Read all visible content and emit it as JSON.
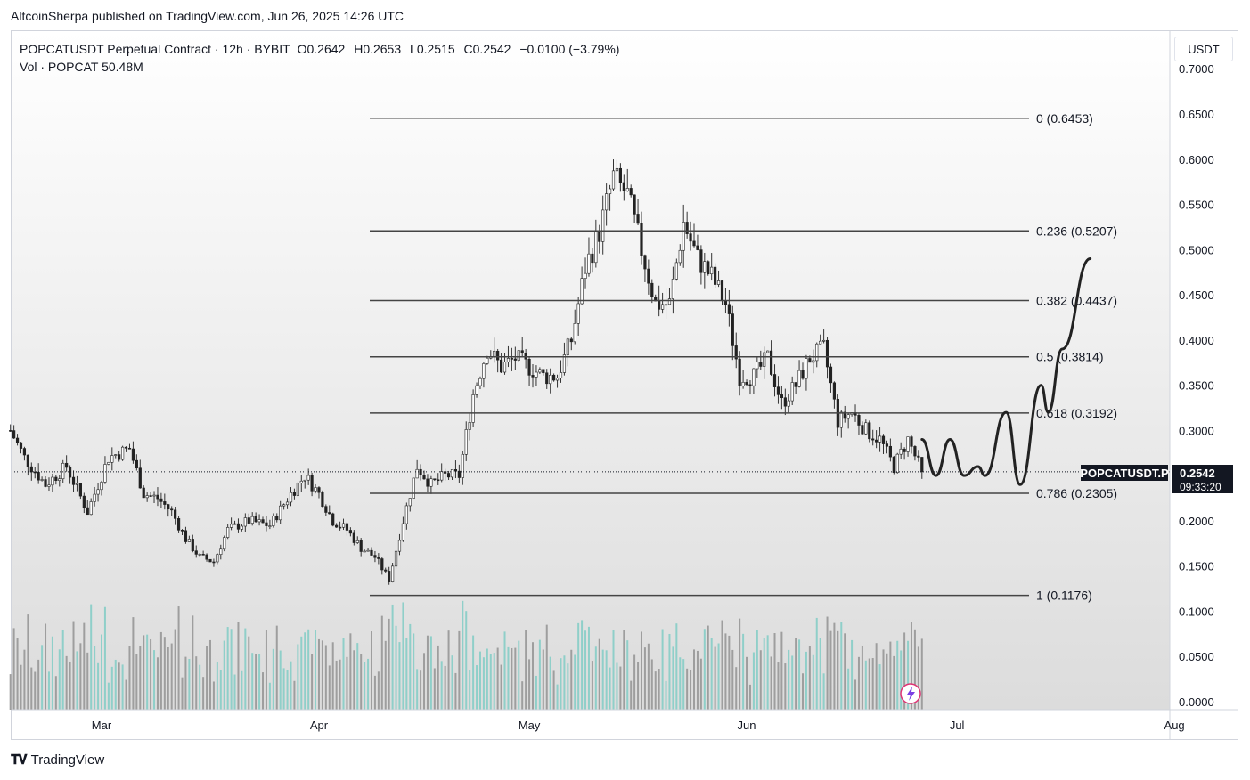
{
  "header": {
    "publisher": "AltcoinSherpa published on TradingView.com, Jun 26, 2025 14:26 UTC"
  },
  "legend": {
    "symbol": "POPCATUSDT Perpetual Contract · 12h · BYBIT",
    "open": "O0.2642",
    "high": "H0.2653",
    "low": "L0.2515",
    "close": "C0.2542",
    "change": "−0.0100 (−3.79%)",
    "volume": "Vol · POPCAT  50.48M"
  },
  "currency_button": "USDT",
  "brand": {
    "name": "TradingView",
    "logo": "tradingview-logo-icon"
  },
  "price_tag": {
    "symbol": "POPCATUSDT.P",
    "price": "0.2542",
    "countdown": "09:33:20"
  },
  "colors": {
    "up": "#26a69a",
    "down": "#555555",
    "vol_up": "#8fcfc9",
    "vol_down": "#9e9e9e",
    "fib_line": "#444444",
    "projection": "#222222",
    "tag_bg": "#131722",
    "bg_top": "#ffffff",
    "bg_bottom": "#dedede"
  },
  "chart_data": {
    "type": "candlestick",
    "interval": "12h",
    "y_axis": {
      "ticks": [
        "0.7000",
        "0.6500",
        "0.6000",
        "0.5500",
        "0.5000",
        "0.4500",
        "0.4000",
        "0.3500",
        "0.3000",
        "0.2500",
        "0.2000",
        "0.1500",
        "0.1000",
        "0.0500",
        "0.0000"
      ],
      "ylim": [
        0.0,
        0.7
      ]
    },
    "x_axis": {
      "ticks": [
        "Mar",
        "Apr",
        "May",
        "Jun",
        "Jul",
        "Aug"
      ]
    },
    "current_price": 0.2542,
    "fib_levels": [
      {
        "label": "0 (0.6453)",
        "value": 0.6453
      },
      {
        "label": "0.236 (0.5207)",
        "value": 0.5207
      },
      {
        "label": "0.382 (0.4437)",
        "value": 0.4437
      },
      {
        "label": "0.5 (0.3814)",
        "value": 0.3814
      },
      {
        "label": "0.618 (0.3192)",
        "value": 0.3192
      },
      {
        "label": "0.786 (0.2305)",
        "value": 0.2305
      },
      {
        "label": "1 (0.1176)",
        "value": 0.1176
      }
    ],
    "price_path": [
      [
        "2025-02-16",
        0.3
      ],
      [
        "2025-02-18",
        0.27
      ],
      [
        "2025-02-21",
        0.24
      ],
      [
        "2025-02-24",
        0.26
      ],
      [
        "2025-02-27",
        0.21
      ],
      [
        "2025-03-02",
        0.27
      ],
      [
        "2025-03-05",
        0.28
      ],
      [
        "2025-03-07",
        0.23
      ],
      [
        "2025-03-09",
        0.225
      ],
      [
        "2025-03-11",
        0.21
      ],
      [
        "2025-03-13",
        0.18
      ],
      [
        "2025-03-15",
        0.16
      ],
      [
        "2025-03-17",
        0.155
      ],
      [
        "2025-03-19",
        0.19
      ],
      [
        "2025-03-22",
        0.2
      ],
      [
        "2025-03-25",
        0.195
      ],
      [
        "2025-03-28",
        0.23
      ],
      [
        "2025-03-30",
        0.25
      ],
      [
        "2025-04-01",
        0.23
      ],
      [
        "2025-04-03",
        0.2
      ],
      [
        "2025-04-05",
        0.19
      ],
      [
        "2025-04-07",
        0.17
      ],
      [
        "2025-04-09",
        0.16
      ],
      [
        "2025-04-11",
        0.135
      ],
      [
        "2025-04-13",
        0.2
      ],
      [
        "2025-04-15",
        0.26
      ],
      [
        "2025-04-17",
        0.24
      ],
      [
        "2025-04-19",
        0.25
      ],
      [
        "2025-04-21",
        0.25
      ],
      [
        "2025-04-23",
        0.34
      ],
      [
        "2025-04-25",
        0.39
      ],
      [
        "2025-04-27",
        0.37
      ],
      [
        "2025-04-29",
        0.38
      ],
      [
        "2025-05-01",
        0.37
      ],
      [
        "2025-05-03",
        0.36
      ],
      [
        "2025-05-05",
        0.36
      ],
      [
        "2025-05-07",
        0.4
      ],
      [
        "2025-05-09",
        0.48
      ],
      [
        "2025-05-11",
        0.52
      ],
      [
        "2025-05-13",
        0.58
      ],
      [
        "2025-05-15",
        0.56
      ],
      [
        "2025-05-17",
        0.5
      ],
      [
        "2025-05-19",
        0.44
      ],
      [
        "2025-05-21",
        0.44
      ],
      [
        "2025-05-23",
        0.53
      ],
      [
        "2025-05-25",
        0.49
      ],
      [
        "2025-05-27",
        0.47
      ],
      [
        "2025-05-29",
        0.44
      ],
      [
        "2025-05-31",
        0.36
      ],
      [
        "2025-06-02",
        0.36
      ],
      [
        "2025-06-04",
        0.38
      ],
      [
        "2025-06-06",
        0.33
      ],
      [
        "2025-06-08",
        0.35
      ],
      [
        "2025-06-10",
        0.38
      ],
      [
        "2025-06-12",
        0.39
      ],
      [
        "2025-06-14",
        0.31
      ],
      [
        "2025-06-16",
        0.32
      ],
      [
        "2025-06-18",
        0.3
      ],
      [
        "2025-06-20",
        0.29
      ],
      [
        "2025-06-22",
        0.26
      ],
      [
        "2025-06-24",
        0.29
      ],
      [
        "2025-06-26",
        0.254
      ]
    ],
    "projection_path": [
      [
        "2025-06-26",
        0.29
      ],
      [
        "2025-06-28",
        0.25
      ],
      [
        "2025-06-30",
        0.29
      ],
      [
        "2025-07-02",
        0.25
      ],
      [
        "2025-07-04",
        0.26
      ],
      [
        "2025-07-05",
        0.25
      ],
      [
        "2025-07-08",
        0.32
      ],
      [
        "2025-07-10",
        0.24
      ],
      [
        "2025-07-13",
        0.35
      ],
      [
        "2025-07-14",
        0.32
      ],
      [
        "2025-07-16",
        0.39
      ],
      [
        "2025-07-20",
        0.49
      ]
    ]
  }
}
